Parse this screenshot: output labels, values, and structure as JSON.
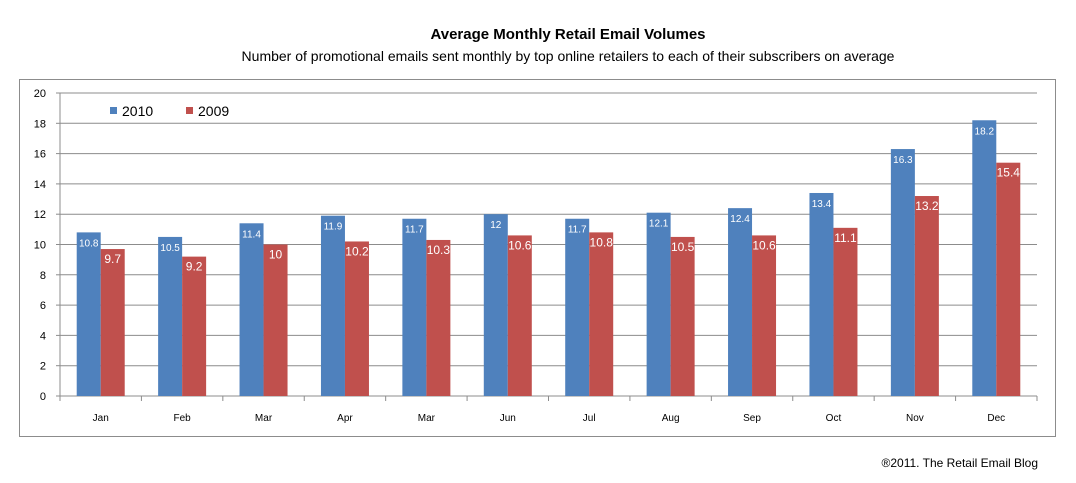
{
  "chart_data": {
    "type": "bar",
    "title": "Average Monthly Retail Email Volumes",
    "subtitle": "Number of promotional emails sent monthly by top online retailers to each of their subscribers on average",
    "categories": [
      "Jan",
      "Feb",
      "Mar",
      "Apr",
      "Mar",
      "Jun",
      "Jul",
      "Aug",
      "Sep",
      "Oct",
      "Nov",
      "Dec"
    ],
    "series": [
      {
        "name": "2010",
        "color": "#4f81bd",
        "values": [
          10.8,
          10.5,
          11.4,
          11.9,
          11.7,
          12,
          11.7,
          12.1,
          12.4,
          13.4,
          16.3,
          18.2
        ],
        "labels": [
          "10.8",
          "10.5",
          "11.4",
          "11.9",
          "11.7",
          "12",
          "11.7",
          "12.1",
          "12.4",
          "13.4",
          "16.3",
          "18.2"
        ]
      },
      {
        "name": "2009",
        "color": "#c0504d",
        "values": [
          9.7,
          9.2,
          10,
          10.2,
          10.3,
          10.6,
          10.8,
          10.5,
          10.6,
          11.1,
          13.2,
          15.4
        ],
        "labels": [
          "9.7",
          "9.2",
          "10",
          "10.2",
          "10.3",
          "10.6",
          "10.8",
          "10.5",
          "10.6",
          "11.1",
          "13.2",
          "15.4"
        ]
      }
    ],
    "ylim": [
      0,
      20
    ],
    "yticks": [
      "0",
      "2",
      "4",
      "6",
      "8",
      "10",
      "12",
      "14",
      "16",
      "18",
      "20"
    ],
    "grid": true,
    "legend": "top-left"
  },
  "credit": {
    "symbol": "®",
    "text": "2011. The Retail Email Blog"
  }
}
